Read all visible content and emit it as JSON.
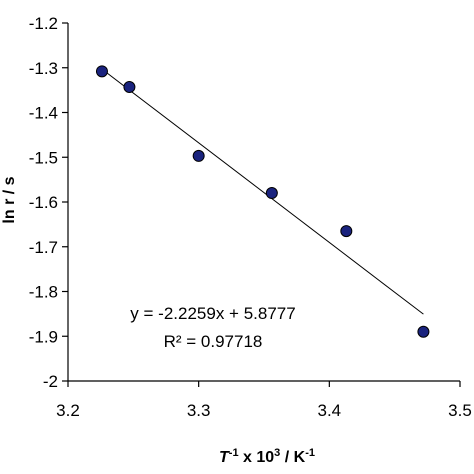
{
  "chart_data": {
    "type": "scatter",
    "xlabel_parts": {
      "var": "T",
      "var_exp": "-1",
      "mid": " x 10",
      "mid_exp": "3",
      "unit": " / K",
      "unit_exp": "-1"
    },
    "ylabel": "ln r / s",
    "xlim": [
      3.2,
      3.5
    ],
    "ylim": [
      -2,
      -1.2
    ],
    "x_ticks": [
      3.2,
      3.3,
      3.4,
      3.5
    ],
    "x_tick_labels": [
      "3.2",
      "3.3",
      "3.4",
      "3.5"
    ],
    "y_ticks": [
      -1.2,
      -1.3,
      -1.4,
      -1.5,
      -1.6,
      -1.7,
      -1.8,
      -1.9,
      -2
    ],
    "y_tick_labels": [
      "-1.2",
      "-1.3",
      "-1.4",
      "-1.5",
      "-1.6",
      "-1.7",
      "-1.8",
      "-1.9",
      "-2"
    ],
    "grid": false,
    "points": [
      {
        "x": 3.226,
        "y": -1.308
      },
      {
        "x": 3.247,
        "y": -1.343
      },
      {
        "x": 3.3,
        "y": -1.497
      },
      {
        "x": 3.356,
        "y": -1.58
      },
      {
        "x": 3.413,
        "y": -1.665
      },
      {
        "x": 3.472,
        "y": -1.89
      }
    ],
    "trendline": {
      "slope": -2.2259,
      "intercept": 5.8777,
      "x_start": 3.226,
      "x_end": 3.472
    },
    "equation_label": "y = -2.2259x + 5.8777",
    "r2_label": "R² = 0.97718",
    "colors": {
      "marker_fill": "#1a237e",
      "marker_stroke": "#000000",
      "line": "#000000",
      "axis": "#000000"
    }
  }
}
